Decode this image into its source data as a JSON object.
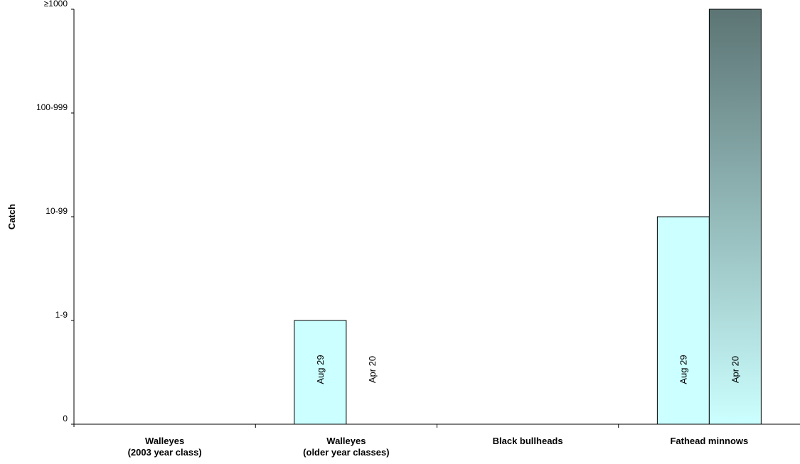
{
  "chart_data": {
    "type": "bar",
    "ylabel": "Catch",
    "y_ticks": [
      "0",
      "1-9",
      "10-99",
      "100-999",
      "≥1000"
    ],
    "categories": [
      [
        "Walleyes",
        "(2003 year class)"
      ],
      [
        "Walleyes",
        "(older year classes)"
      ],
      [
        "Black bullheads"
      ],
      [
        "Fathead minnows"
      ]
    ],
    "series": [
      {
        "name": "Aug 29",
        "values": [
          0,
          1,
          0,
          2
        ],
        "color": "#ccffff"
      },
      {
        "name": "Apr 20",
        "values": [
          0,
          0,
          0,
          4
        ],
        "gradient": [
          "#5c7474",
          "#ccffff"
        ]
      }
    ],
    "bar_labels": [
      {
        "category": 1,
        "series": 0,
        "text": "Aug 29"
      },
      {
        "category": 1,
        "series": 1,
        "text": "Apr 20"
      },
      {
        "category": 3,
        "series": 0,
        "text": "Aug 29"
      },
      {
        "category": 3,
        "series": 1,
        "text": "Apr 20"
      }
    ],
    "ylim": [
      0,
      4
    ],
    "grid": false,
    "legend": "none"
  }
}
